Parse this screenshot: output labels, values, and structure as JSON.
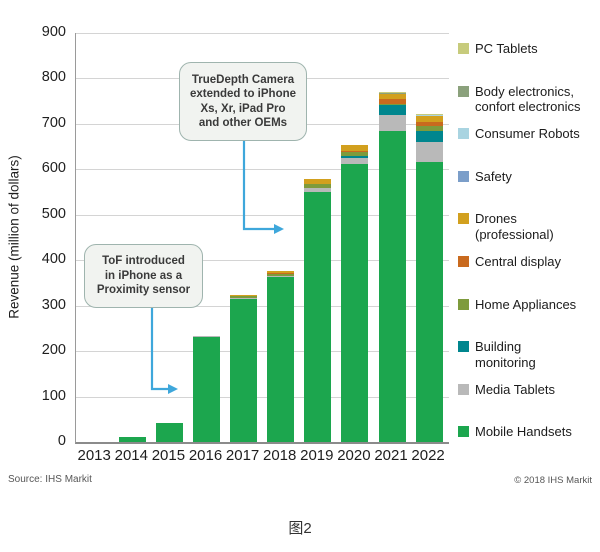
{
  "chart_data": {
    "type": "bar",
    "subtype": "stacked",
    "categories": [
      "2013",
      "2014",
      "2015",
      "2016",
      "2017",
      "2018",
      "2019",
      "2020",
      "2021",
      "2022"
    ],
    "ylabel": "Revenue (million of dollars)",
    "ylim": [
      0,
      900
    ],
    "y_ticks": [
      0,
      100,
      200,
      300,
      400,
      500,
      600,
      700,
      800,
      900
    ],
    "grid": true,
    "legend_position": "right",
    "series": [
      {
        "name": "PC Tablets",
        "color": "#c7cb7c",
        "values": [
          0,
          0,
          0,
          0,
          0,
          0,
          0,
          0,
          1,
          1
        ]
      },
      {
        "name": "Body electronics,\nconfort electronics",
        "color": "#8ba17c",
        "values": [
          0,
          0,
          0,
          0,
          0,
          0,
          0,
          0,
          1,
          1
        ]
      },
      {
        "name": "Consumer Robots",
        "color": "#a9d4e1",
        "values": [
          0,
          0,
          0,
          0,
          0,
          0,
          0,
          0,
          1,
          1
        ]
      },
      {
        "name": "Safety",
        "color": "#7b9ec9",
        "values": [
          0,
          0,
          0,
          0,
          0,
          0,
          0,
          0,
          1,
          1
        ]
      },
      {
        "name": "Drones\n(professional)",
        "color": "#d2a01e",
        "values": [
          0,
          0,
          0,
          0,
          2,
          5,
          11,
          13,
          12,
          13
        ]
      },
      {
        "name": "Central display",
        "color": "#c96a1e",
        "values": [
          0,
          0,
          0,
          0,
          0,
          1,
          0,
          2,
          10,
          9
        ]
      },
      {
        "name": "Home Appliances",
        "color": "#7e9b3c",
        "values": [
          0,
          0,
          0,
          0,
          3,
          4,
          9,
          9,
          2,
          11
        ]
      },
      {
        "name": "Building\nmonitoring",
        "color": "#00868e",
        "values": [
          0,
          0,
          0,
          0,
          0,
          0,
          0,
          6,
          22,
          24
        ]
      },
      {
        "name": "Media Tablets",
        "color": "#b9b9b9",
        "values": [
          0,
          0,
          0,
          2,
          3,
          3,
          8,
          12,
          35,
          44
        ]
      },
      {
        "name": "Mobile Handsets",
        "color": "#1ca64e",
        "values": [
          0,
          10,
          42,
          231,
          315,
          363,
          550,
          612,
          685,
          617
        ]
      }
    ]
  },
  "annotations": {
    "tof": {
      "text": "ToF introduced\nin iPhone as a\nProximity sensor"
    },
    "truedepth": {
      "text": "TrueDepth Camera\nextended to iPhone\nXs, Xr, iPad Pro\nand other OEMs"
    },
    "arrow_color": "#3ea7db"
  },
  "footer": {
    "source": "Source: IHS Markit",
    "copyright": "© 2018 IHS Markit",
    "caption": "图2"
  }
}
